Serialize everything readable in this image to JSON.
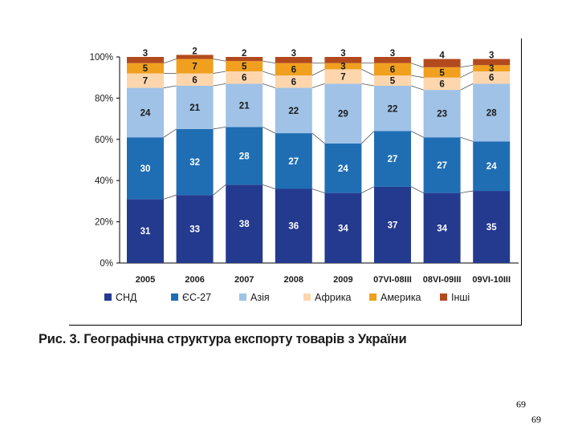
{
  "caption": "Рис. 3. Географічна структура експорту товарів з України",
  "page_number_1": "69",
  "page_number_2": "69",
  "chart_data": {
    "type": "bar",
    "stacked": true,
    "categories": [
      "2005",
      "2006",
      "2007",
      "2008",
      "2009",
      "07VI-08III",
      "08VI-09III",
      "09VI-10III"
    ],
    "y_ticks": [
      "0%",
      "20%",
      "40%",
      "60%",
      "80%",
      "100%"
    ],
    "ylim": [
      0,
      100
    ],
    "legend_position": "bottom",
    "series": [
      {
        "name": "СНД",
        "color": "#243a8f",
        "values": [
          31,
          33,
          38,
          36,
          34,
          37,
          34,
          35
        ]
      },
      {
        "name": "ЄС-27",
        "color": "#1f6eb4",
        "values": [
          30,
          32,
          28,
          27,
          24,
          27,
          27,
          24
        ]
      },
      {
        "name": "Азія",
        "color": "#9fc2e6",
        "values": [
          24,
          21,
          21,
          22,
          29,
          22,
          23,
          28
        ]
      },
      {
        "name": "Африка",
        "color": "#fdd6ad",
        "values": [
          7,
          6,
          6,
          6,
          7,
          5,
          6,
          6
        ]
      },
      {
        "name": "Америка",
        "color": "#f0a01e",
        "values": [
          5,
          7,
          5,
          6,
          3,
          6,
          5,
          3
        ]
      },
      {
        "name": "Інші",
        "color": "#b24a1e",
        "values": [
          3,
          2,
          2,
          3,
          3,
          3,
          4,
          3
        ]
      }
    ]
  }
}
